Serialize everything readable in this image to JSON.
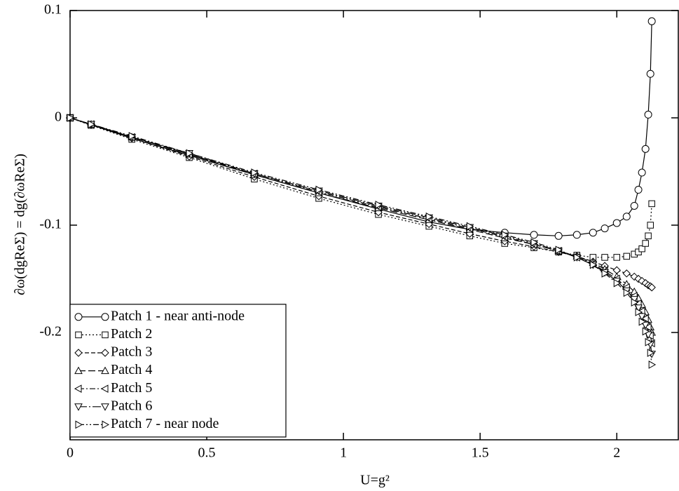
{
  "chart_data": {
    "type": "line",
    "xlabel": "U=g²",
    "ylabel": "∂ω(dgReΣ) = dg(∂ωReΣ)",
    "x": [
      0,
      0.077,
      0.226,
      0.436,
      0.674,
      0.91,
      1.128,
      1.313,
      1.462,
      1.59,
      1.697,
      1.787,
      1.854,
      1.913,
      1.956,
      2.0,
      2.036,
      2.064,
      2.079,
      2.092,
      2.105,
      2.115,
      2.123,
      2.128
    ],
    "series": [
      {
        "name": "Patch 1 - near anti-node",
        "color": "#000000",
        "marker": "circle",
        "dash": "solid",
        "values": [
          0,
          -0.0065,
          -0.019,
          -0.035,
          -0.053,
          -0.07,
          -0.085,
          -0.097,
          -0.104,
          -0.107,
          -0.109,
          -0.11,
          -0.109,
          -0.107,
          -0.103,
          -0.098,
          -0.092,
          -0.082,
          -0.067,
          -0.051,
          -0.029,
          0.003,
          0.041,
          0.09
        ]
      },
      {
        "name": "Patch 2",
        "color": "#000000",
        "marker": "square",
        "dash": "dotted",
        "values": [
          0,
          -0.007,
          -0.02,
          -0.037,
          -0.057,
          -0.075,
          -0.09,
          -0.101,
          -0.11,
          -0.117,
          -0.121,
          -0.125,
          -0.128,
          -0.13,
          -0.13,
          -0.13,
          -0.129,
          -0.127,
          -0.125,
          -0.122,
          -0.117,
          -0.11,
          -0.1,
          -0.08
        ]
      },
      {
        "name": "Patch 3",
        "color": "#000000",
        "marker": "diamond",
        "dash": "dashed",
        "values": [
          0,
          -0.0065,
          -0.019,
          -0.036,
          -0.055,
          -0.073,
          -0.088,
          -0.099,
          -0.108,
          -0.115,
          -0.12,
          -0.125,
          -0.129,
          -0.134,
          -0.138,
          -0.142,
          -0.145,
          -0.148,
          -0.15,
          -0.152,
          -0.154,
          -0.156,
          -0.157,
          -0.158
        ]
      },
      {
        "name": "Patch 4",
        "color": "#000000",
        "marker": "triangle-up",
        "dash": "longdash",
        "values": [
          0,
          -0.006,
          -0.018,
          -0.034,
          -0.053,
          -0.07,
          -0.084,
          -0.095,
          -0.104,
          -0.112,
          -0.118,
          -0.124,
          -0.129,
          -0.135,
          -0.141,
          -0.148,
          -0.155,
          -0.162,
          -0.168,
          -0.174,
          -0.181,
          -0.188,
          -0.195,
          -0.2
        ]
      },
      {
        "name": "Patch 5",
        "color": "#000000",
        "marker": "triangle-left",
        "dash": "dashdot",
        "values": [
          0,
          -0.006,
          -0.018,
          -0.034,
          -0.052,
          -0.069,
          -0.083,
          -0.094,
          -0.103,
          -0.111,
          -0.118,
          -0.124,
          -0.13,
          -0.136,
          -0.143,
          -0.15,
          -0.158,
          -0.166,
          -0.173,
          -0.18,
          -0.187,
          -0.195,
          -0.203,
          -0.21
        ]
      },
      {
        "name": "Patch 6",
        "color": "#000000",
        "marker": "triangle-down",
        "dash": "longdashdot",
        "values": [
          0,
          -0.006,
          -0.018,
          -0.033,
          -0.052,
          -0.068,
          -0.082,
          -0.093,
          -0.102,
          -0.11,
          -0.117,
          -0.124,
          -0.13,
          -0.137,
          -0.144,
          -0.152,
          -0.161,
          -0.169,
          -0.177,
          -0.185,
          -0.193,
          -0.202,
          -0.211,
          -0.22
        ]
      },
      {
        "name": "Patch 7 - near node",
        "color": "#000000",
        "marker": "triangle-right",
        "dash": "dashdotdot",
        "values": [
          0,
          -0.006,
          -0.017,
          -0.033,
          -0.051,
          -0.067,
          -0.081,
          -0.092,
          -0.101,
          -0.109,
          -0.116,
          -0.123,
          -0.13,
          -0.137,
          -0.145,
          -0.154,
          -0.163,
          -0.172,
          -0.181,
          -0.19,
          -0.199,
          -0.209,
          -0.219,
          -0.23
        ]
      }
    ],
    "xlim": [
      0,
      2.225
    ],
    "xticks": [
      0,
      0.5,
      1,
      1.5,
      2
    ],
    "ylim": [
      -0.3,
      0.1
    ],
    "yticks": [
      -0.2,
      -0.1,
      0,
      0.1
    ],
    "grid": false,
    "legend": "lower left"
  }
}
